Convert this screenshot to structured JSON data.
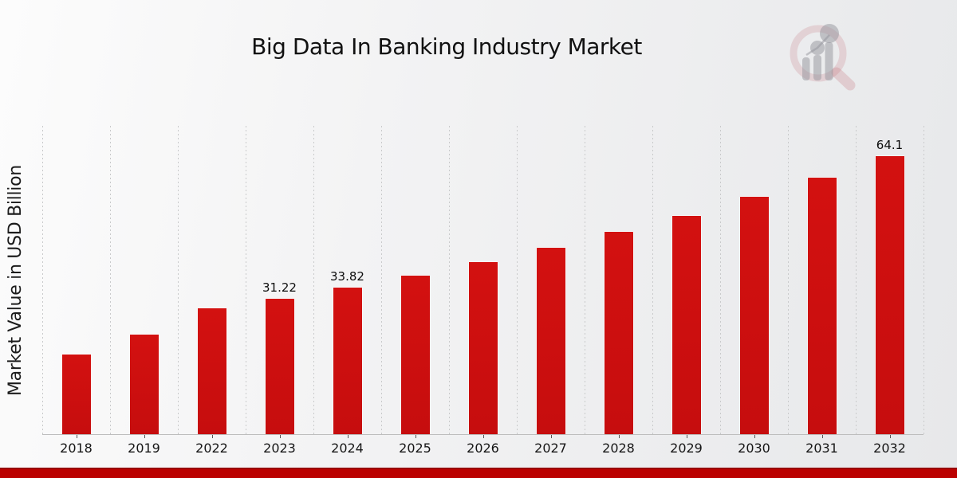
{
  "title": "Big Data In Banking Industry Market",
  "ylabel": "Market Value in USD Billion",
  "logo_icon": "magnifier-bar-chart-watermark",
  "colors": {
    "bar": "#c60d0e",
    "bar_top": "#d31110",
    "footer_bar": "#bb0100",
    "footer_edge": "#970101",
    "grid": "#c9cacb",
    "axis": "#bdbdbd",
    "tick": "#555555",
    "text": "#111111",
    "watermark_red": "rgba(190,90,98,0.18)",
    "watermark_gray": "rgba(148,148,156,0.5)"
  },
  "chart_data": {
    "type": "bar",
    "title": "Big Data In Banking Industry Market",
    "xlabel": "",
    "ylabel": "Market Value in USD Billion",
    "categories": [
      "2018",
      "2019",
      "2022",
      "2023",
      "2024",
      "2025",
      "2026",
      "2027",
      "2028",
      "2029",
      "2030",
      "2031",
      "2032"
    ],
    "values": [
      18.3,
      22.9,
      29.0,
      31.22,
      33.82,
      36.6,
      39.7,
      43.0,
      46.6,
      50.4,
      54.7,
      59.2,
      64.1
    ],
    "value_labels": [
      "",
      "",
      "",
      "31.22",
      "33.82",
      "",
      "",
      "",
      "",
      "",
      "",
      "",
      "64.1"
    ],
    "ylim": [
      0,
      71.1
    ],
    "grid": "vertical-dashed",
    "legend": false,
    "bar_color": "#c60d0e"
  }
}
